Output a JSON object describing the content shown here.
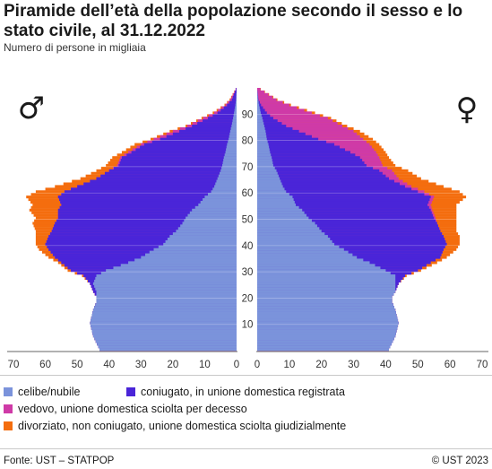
{
  "title": "Piramide dell’età della popolazione secondo il sesso e lo stato civile, al 31.12.2022",
  "subtitle": "Numero di persone in migliaia",
  "footer": {
    "source": "Fonte: UST – STATPOP",
    "copyright": "© UST 2023"
  },
  "colors": {
    "celibe": "#7b93db",
    "coniugato": "#4a25d8",
    "vedovo": "#cf3aa7",
    "divorziato": "#f46d0e"
  },
  "legend": [
    {
      "key": "celibe",
      "label": "celibe/nubile"
    },
    {
      "key": "coniugato",
      "label": "coniugato, in unione domestica registrata"
    },
    {
      "key": "vedovo",
      "label": "vedovo, unione domestica sciolta per decesso"
    },
    {
      "key": "divorziato",
      "label": "divorziato, non coniugato, unione domestica sciolta giudizialmente"
    }
  ],
  "chart_data": {
    "type": "bar",
    "orientation": "horizontal population pyramid (stacked)",
    "sides": {
      "left": "♂",
      "right": "♀"
    },
    "x_ticks_left": [
      70,
      60,
      50,
      40,
      30,
      20,
      10,
      0
    ],
    "x_ticks_right": [
      0,
      10,
      20,
      30,
      40,
      50,
      60,
      70
    ],
    "xlim": [
      0,
      70
    ],
    "age_ticks": [
      10,
      20,
      30,
      40,
      50,
      60,
      70,
      80,
      90
    ],
    "ylim": [
      0,
      99
    ],
    "anchor_ages": [
      0,
      5,
      10,
      15,
      18,
      20,
      22,
      25,
      28,
      30,
      33,
      35,
      38,
      40,
      43,
      45,
      48,
      50,
      53,
      55,
      58,
      60,
      62,
      65,
      68,
      70,
      73,
      75,
      78,
      80,
      83,
      85,
      88,
      90,
      93,
      95,
      99
    ],
    "series": [
      {
        "sex": "male",
        "cumulative_ends": {
          "celibe": [
            43,
            45,
            46,
            45,
            44,
            44,
            44,
            45,
            44,
            41,
            34,
            30,
            26,
            23,
            21,
            19,
            17,
            16,
            14,
            12,
            10,
            8,
            7,
            6,
            5,
            4.5,
            4,
            3.5,
            3,
            2.5,
            2,
            1.6,
            1.1,
            0.8,
            0.4,
            0.2,
            0
          ],
          "coniugato": [
            43,
            45,
            46,
            45,
            44,
            44,
            45,
            46,
            48,
            52,
            55,
            57,
            59,
            60,
            59,
            58,
            57,
            56,
            56,
            55,
            56,
            54,
            50,
            44,
            40,
            37,
            36,
            33,
            29,
            24,
            18,
            14,
            9,
            6,
            3,
            1.5,
            0.2
          ],
          "vedovo": [
            43,
            45,
            46,
            45,
            44,
            44,
            45,
            46,
            48,
            52,
            55,
            57,
            59,
            60,
            59,
            58,
            57,
            56,
            56,
            55,
            56,
            54,
            50,
            44,
            40,
            37.5,
            36.5,
            34,
            30,
            26,
            20,
            15.5,
            10.5,
            7,
            3.5,
            2,
            0.3
          ],
          "divorziato": [
            43,
            45,
            46,
            45,
            44,
            44,
            45,
            46,
            48.5,
            53,
            56,
            59,
            62,
            63,
            63,
            63,
            64,
            63,
            65,
            64,
            66,
            63,
            57,
            49,
            44,
            41,
            39,
            36,
            32,
            27,
            21,
            16,
            11,
            7.5,
            3.8,
            2.2,
            0.3
          ]
        }
      },
      {
        "sex": "female",
        "cumulative_ends": {
          "celibe": [
            41,
            43,
            44,
            43,
            42,
            42,
            43,
            43,
            43,
            40,
            35,
            31,
            27,
            24,
            22,
            20,
            18,
            16,
            14,
            12,
            11,
            9,
            8,
            7,
            6,
            5,
            4.5,
            4,
            3.5,
            3,
            2.6,
            2.2,
            1.6,
            1.1,
            0.6,
            0.3,
            0
          ],
          "coniugato": [
            41,
            43,
            44,
            43,
            42,
            42,
            43,
            44,
            46,
            50,
            54,
            57,
            58,
            59,
            58,
            57,
            56,
            55,
            54,
            53,
            54,
            50,
            46,
            41,
            38,
            34,
            32,
            29,
            24,
            19,
            13,
            9,
            5,
            3,
            1.2,
            0.4,
            0
          ],
          "vedovo": [
            41,
            43,
            44,
            43,
            42,
            42,
            43,
            44,
            46,
            50,
            54,
            57,
            58,
            59,
            58,
            57,
            56,
            55.5,
            54.5,
            54,
            55,
            52,
            48,
            44,
            42,
            39,
            38,
            37,
            35,
            33,
            30,
            26.5,
            22,
            17,
            10,
            6,
            1
          ],
          "divorziato": [
            41,
            43,
            44,
            43,
            42,
            42,
            43,
            44,
            46.5,
            51,
            56,
            59,
            62,
            63,
            63,
            62,
            62,
            62,
            62,
            62,
            65,
            63,
            58,
            51,
            47,
            43,
            41,
            40,
            38,
            36,
            32,
            28,
            23,
            18,
            10.5,
            6.3,
            1.1
          ]
        }
      }
    ]
  }
}
